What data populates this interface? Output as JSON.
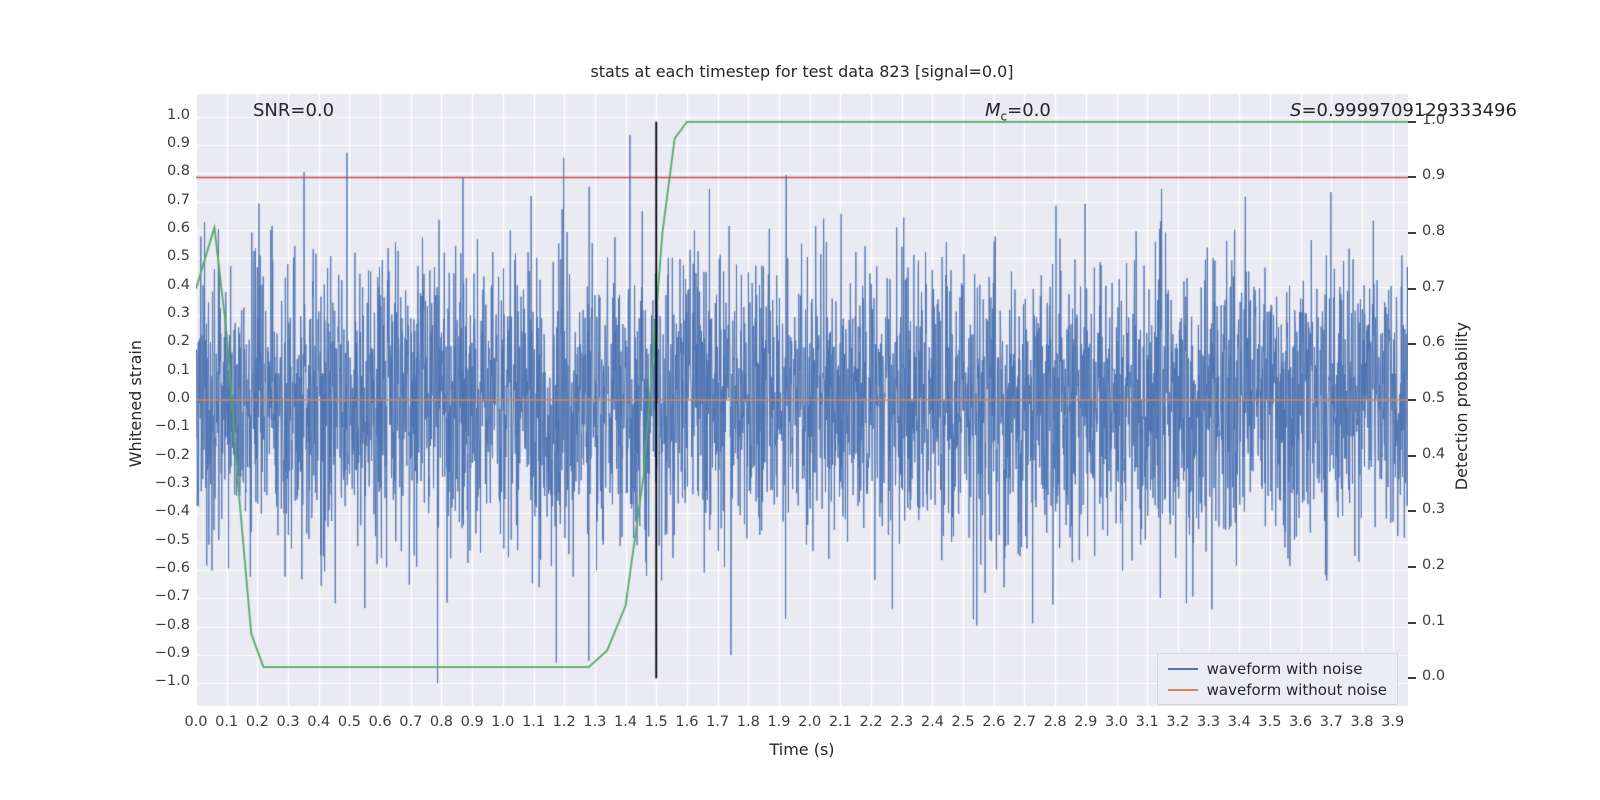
{
  "chart_data": {
    "type": "line",
    "title": "stats at each timestep for test data 823 [signal=0.0]",
    "xlabel": "Time (s)",
    "ylabel_left": "Whitened strain",
    "ylabel_right": "Detection probability",
    "xlim": [
      0,
      3.95
    ],
    "ylim_left": [
      -1.08,
      1.08
    ],
    "ylim_right": [
      -0.05,
      1.05
    ],
    "grid": true,
    "plot_bg": "#eaeaf2",
    "grid_color": "#ffffff",
    "x_ticks": [
      "0.0",
      "0.1",
      "0.2",
      "0.3",
      "0.4",
      "0.5",
      "0.6",
      "0.7",
      "0.8",
      "0.9",
      "1.0",
      "1.1",
      "1.2",
      "1.3",
      "1.4",
      "1.5",
      "1.6",
      "1.7",
      "1.8",
      "1.9",
      "2.0",
      "2.1",
      "2.2",
      "2.3",
      "2.4",
      "2.5",
      "2.6",
      "2.7",
      "2.8",
      "2.9",
      "3.0",
      "3.1",
      "3.2",
      "3.3",
      "3.4",
      "3.5",
      "3.6",
      "3.7",
      "3.8",
      "3.9"
    ],
    "y_ticks_left": [
      "1.0",
      "0.9",
      "0.8",
      "0.7",
      "0.6",
      "0.5",
      "0.4",
      "0.3",
      "0.2",
      "0.1",
      "0.0",
      "-0.1",
      "-0.2",
      "-0.3",
      "-0.4",
      "-0.5",
      "-0.6",
      "-0.7",
      "-0.8",
      "-0.9",
      "-1.0"
    ],
    "y_ticks_right": [
      "1.0",
      "0.9",
      "0.8",
      "0.7",
      "0.6",
      "0.5",
      "0.4",
      "0.3",
      "0.2",
      "0.1",
      "0.0"
    ],
    "annotations": {
      "snr": "SNR=0.0",
      "mc_prefix": "M",
      "mc_sub": "c",
      "mc_suffix": "=0.0",
      "s_prefix": "S",
      "s_suffix": "=0.9999709129333496"
    },
    "series": [
      {
        "name": "waveform with noise",
        "color": "#4c72b0",
        "axis": "left",
        "kind": "gaussian_noise",
        "n": 3950,
        "std": 0.26,
        "clip": 1.0,
        "seed": 823
      },
      {
        "name": "waveform without noise",
        "color": "#dd8452",
        "axis": "left",
        "kind": "constant",
        "value": 0.0
      },
      {
        "name": "detection probability",
        "color": "#55a868",
        "axis": "right",
        "kind": "points",
        "points": [
          [
            0.0,
            0.7
          ],
          [
            0.06,
            0.81
          ],
          [
            0.1,
            0.62
          ],
          [
            0.14,
            0.33
          ],
          [
            0.18,
            0.08
          ],
          [
            0.22,
            0.02
          ],
          [
            1.28,
            0.02
          ],
          [
            1.34,
            0.05
          ],
          [
            1.4,
            0.13
          ],
          [
            1.46,
            0.37
          ],
          [
            1.52,
            0.8
          ],
          [
            1.56,
            0.97
          ],
          [
            1.6,
            1.0
          ],
          [
            3.95,
            1.0
          ]
        ]
      },
      {
        "name": "detection threshold",
        "color": "#c44e52",
        "axis": "right",
        "kind": "hline",
        "value": 0.9
      },
      {
        "name": "event time marker",
        "color": "#000000",
        "axis": "right",
        "kind": "vline",
        "x": 1.5,
        "y0": 0.0,
        "y1": 1.0
      }
    ],
    "legend": [
      {
        "label": "waveform with noise",
        "color": "#4c72b0"
      },
      {
        "label": "waveform without noise",
        "color": "#dd8452"
      }
    ]
  }
}
